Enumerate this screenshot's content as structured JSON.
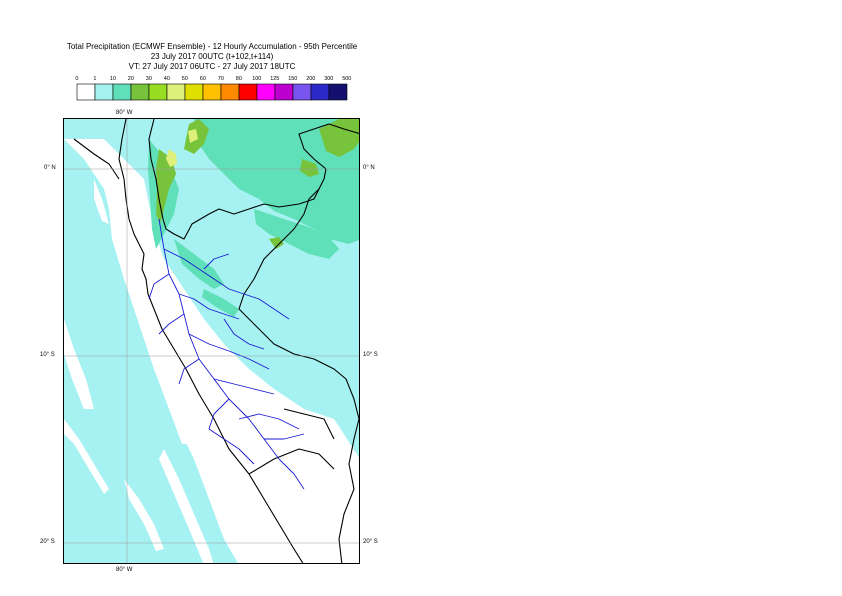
{
  "title": {
    "line1": "Total Precipitation (ECMWF Ensemble) - 12 Hourly Accumulation - 95th Percentile",
    "line2": "23 July 2017 00UTC (t+102,t+114)",
    "line3": "VT: 27 July 2017 06UTC - 27 July 2017 18UTC"
  },
  "legend": {
    "values": [
      "0",
      "1",
      "10",
      "20",
      "30",
      "40",
      "50",
      "60",
      "70",
      "80",
      "100",
      "125",
      "150",
      "200",
      "300",
      "500"
    ],
    "colors": [
      "#ffffff",
      "#a6f2f2",
      "#5fe0b8",
      "#77c43c",
      "#99dd22",
      "#ddf07a",
      "#e0e000",
      "#ffc000",
      "#ff8a00",
      "#ff0000",
      "#ff00ff",
      "#bb00d0",
      "#7755ee",
      "#2a2ac8",
      "#141070"
    ]
  },
  "map": {
    "lon_labels": [
      "80° W",
      "80° W"
    ],
    "lat_labels": [
      "0° N",
      "0° N",
      "10° S",
      "10° S",
      "20° S",
      "20° S"
    ]
  }
}
